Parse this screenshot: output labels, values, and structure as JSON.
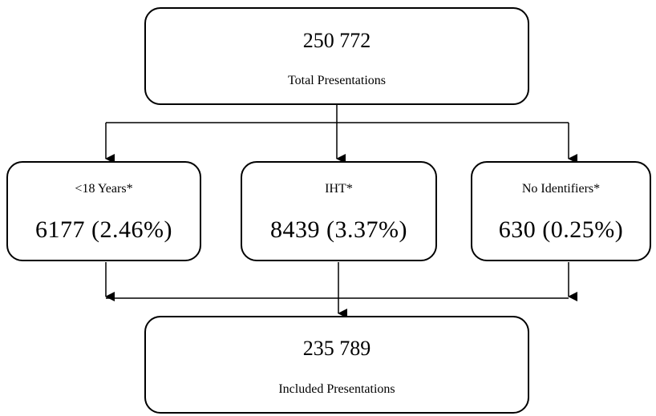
{
  "top_box": {
    "value": "250 772",
    "label": "Total Presentations"
  },
  "exclusions": [
    {
      "label": "<18 Years*",
      "value": "6177 (2.46%)"
    },
    {
      "label": "IHT*",
      "value": "8439 (3.37%)"
    },
    {
      "label": "No Identifiers*",
      "value": "630 (0.25%)"
    }
  ],
  "bottom_box": {
    "value": "235 789",
    "label": "Included Presentations"
  }
}
